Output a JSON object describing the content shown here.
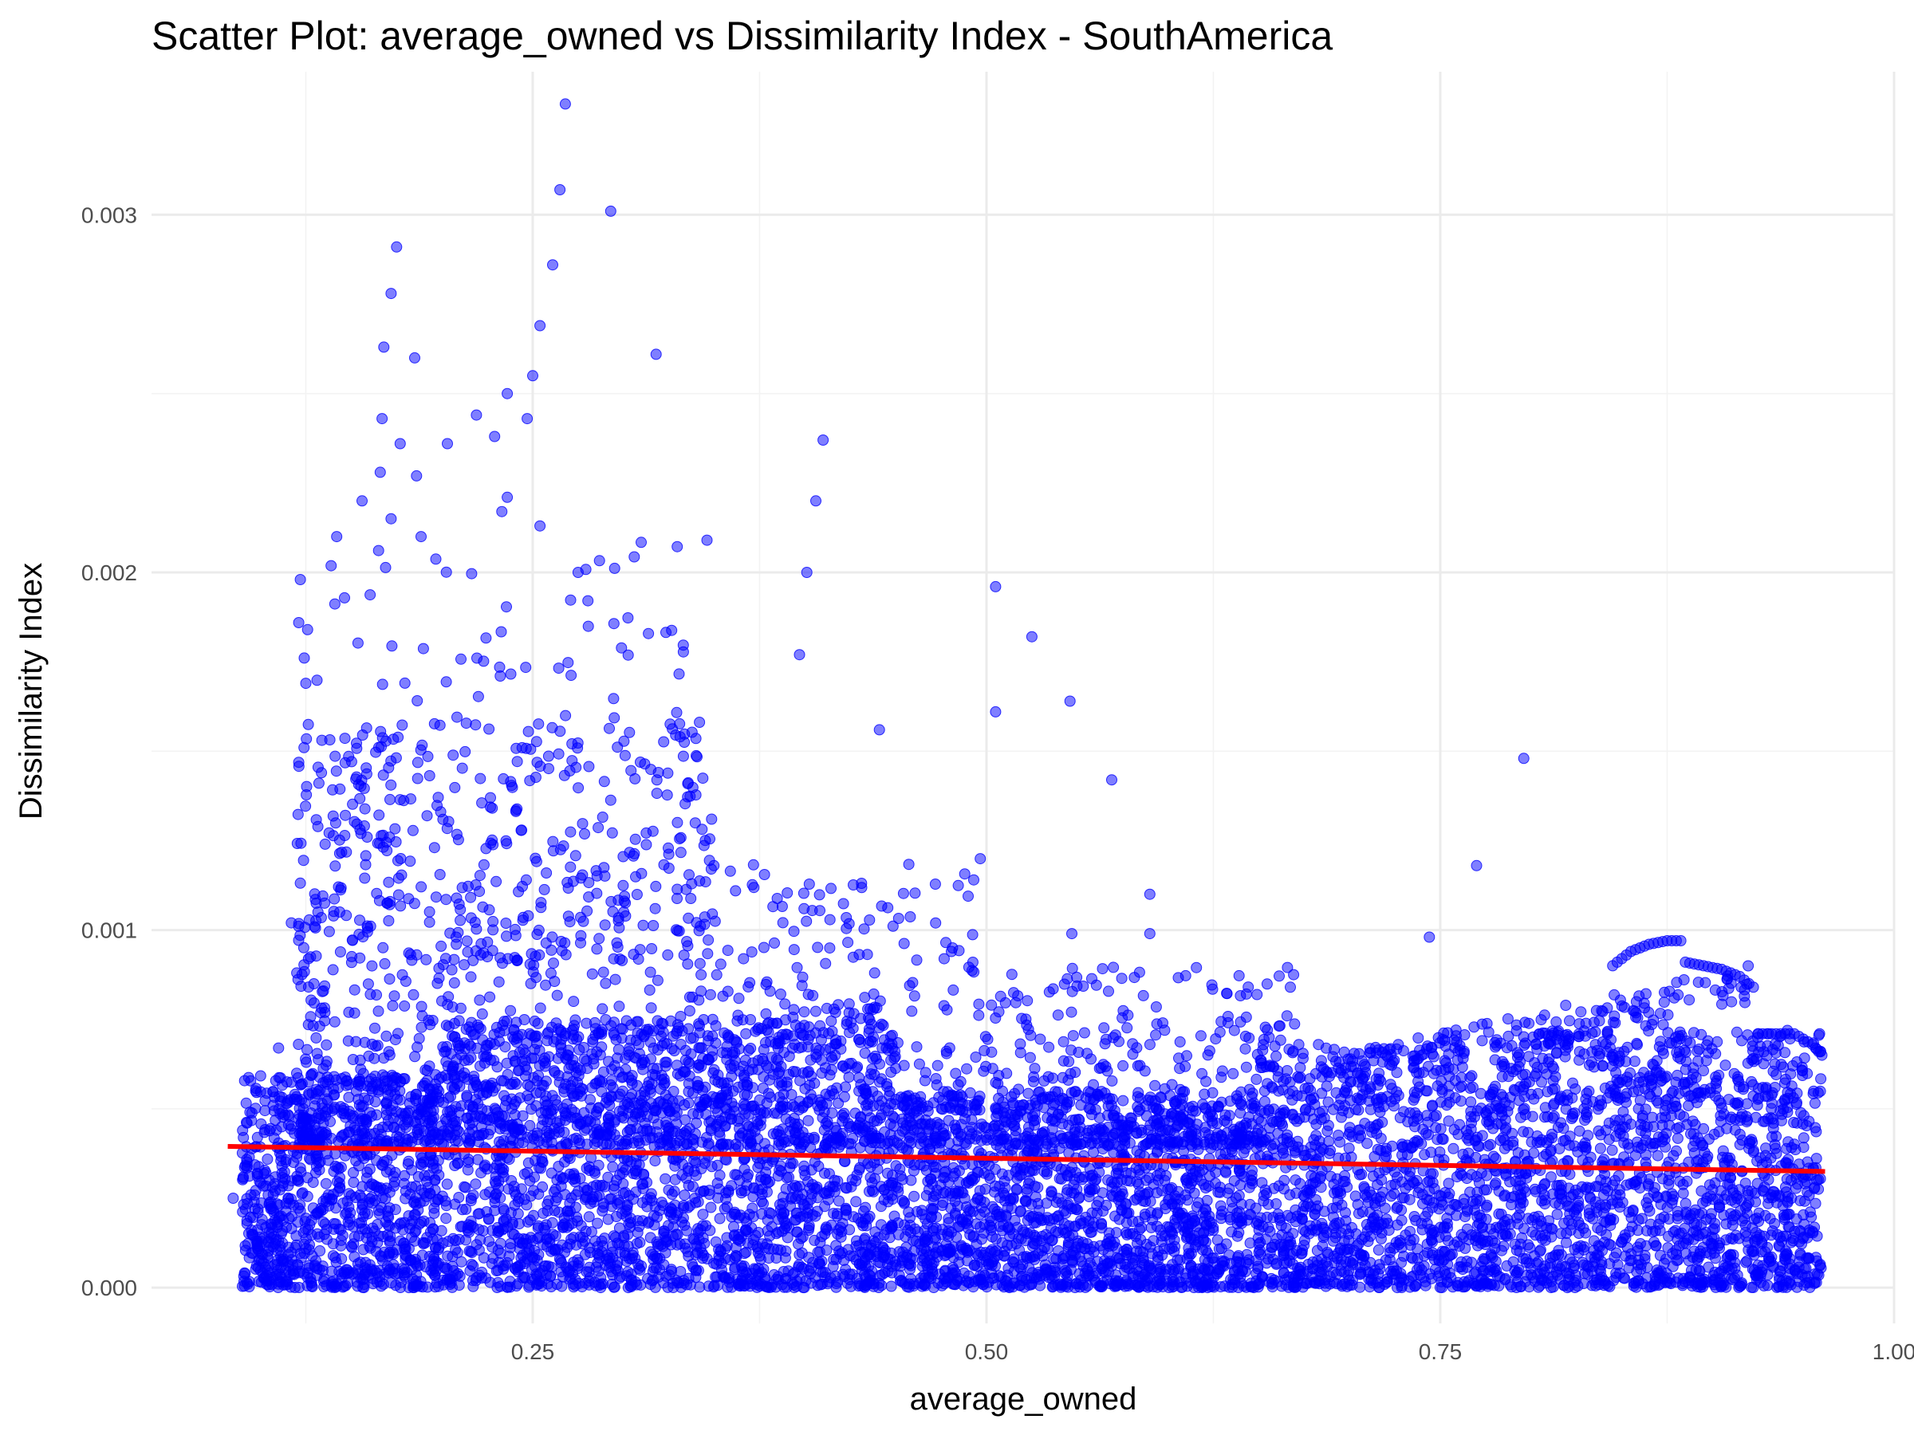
{
  "chart_data": {
    "type": "scatter",
    "title": "Scatter Plot: average_owned vs Dissimilarity Index - SouthAmerica",
    "xlabel": "average_owned",
    "ylabel": "Dissimilarity Index",
    "xlim": [
      0.04,
      1.0
    ],
    "ylim": [
      -0.0001,
      0.0034
    ],
    "x_ticks": [
      0.25,
      0.5,
      0.75,
      1.0
    ],
    "x_tick_labels": [
      "0.25",
      "0.50",
      "0.75",
      "1.00"
    ],
    "y_ticks": [
      0.0,
      0.001,
      0.002,
      0.003
    ],
    "y_tick_labels": [
      "0.000",
      "0.001",
      "0.002",
      "0.003"
    ],
    "grid": true,
    "point_color": "#0000ff",
    "point_opacity": 0.5,
    "trend_color": "#ff0000",
    "trend_line": {
      "x": [
        0.082,
        0.962
      ],
      "y": [
        0.000395,
        0.000325
      ]
    },
    "outliers": [
      {
        "x": 0.268,
        "y": 0.00331
      },
      {
        "x": 0.265,
        "y": 0.00307
      },
      {
        "x": 0.293,
        "y": 0.00301
      },
      {
        "x": 0.175,
        "y": 0.00291
      },
      {
        "x": 0.261,
        "y": 0.00286
      },
      {
        "x": 0.172,
        "y": 0.00278
      },
      {
        "x": 0.254,
        "y": 0.00269
      },
      {
        "x": 0.168,
        "y": 0.00263
      },
      {
        "x": 0.185,
        "y": 0.0026
      },
      {
        "x": 0.318,
        "y": 0.00261
      },
      {
        "x": 0.25,
        "y": 0.00255
      },
      {
        "x": 0.236,
        "y": 0.0025
      },
      {
        "x": 0.167,
        "y": 0.00243
      },
      {
        "x": 0.219,
        "y": 0.00244
      },
      {
        "x": 0.247,
        "y": 0.00243
      },
      {
        "x": 0.41,
        "y": 0.00237
      },
      {
        "x": 0.229,
        "y": 0.00238
      },
      {
        "x": 0.177,
        "y": 0.00236
      },
      {
        "x": 0.203,
        "y": 0.00236
      },
      {
        "x": 0.166,
        "y": 0.00228
      },
      {
        "x": 0.186,
        "y": 0.00227
      },
      {
        "x": 0.236,
        "y": 0.00221
      },
      {
        "x": 0.156,
        "y": 0.0022
      },
      {
        "x": 0.406,
        "y": 0.0022
      },
      {
        "x": 0.172,
        "y": 0.00215
      },
      {
        "x": 0.233,
        "y": 0.00217
      },
      {
        "x": 0.254,
        "y": 0.00213
      },
      {
        "x": 0.346,
        "y": 0.00209
      },
      {
        "x": 0.401,
        "y": 0.002
      },
      {
        "x": 0.275,
        "y": 0.002
      },
      {
        "x": 0.142,
        "y": 0.0021
      },
      {
        "x": 0.122,
        "y": 0.00198
      },
      {
        "x": 0.505,
        "y": 0.00196
      },
      {
        "x": 0.397,
        "y": 0.00177
      },
      {
        "x": 0.525,
        "y": 0.00182
      },
      {
        "x": 0.546,
        "y": 0.00164
      },
      {
        "x": 0.505,
        "y": 0.00161
      },
      {
        "x": 0.441,
        "y": 0.00156
      },
      {
        "x": 0.569,
        "y": 0.00142
      },
      {
        "x": 0.796,
        "y": 0.00148
      },
      {
        "x": 0.77,
        "y": 0.00118
      },
      {
        "x": 0.59,
        "y": 0.0011
      },
      {
        "x": 0.59,
        "y": 0.00099
      },
      {
        "x": 0.547,
        "y": 0.00099
      },
      {
        "x": 0.744,
        "y": 0.00098
      },
      {
        "x": 0.085,
        "y": 0.00025
      },
      {
        "x": 0.093,
        "y": 1e-05
      },
      {
        "x": 0.11,
        "y": 0.00067
      },
      {
        "x": 0.117,
        "y": 0.00102
      },
      {
        "x": 0.126,
        "y": 0.00184
      },
      {
        "x": 0.125,
        "y": 0.00169
      },
      {
        "x": 0.124,
        "y": 0.00151
      },
      {
        "x": 0.927,
        "y": 0.0001
      }
    ],
    "band_series": [
      {
        "x": [
          0.845,
          0.855,
          0.865,
          0.875,
          0.885
        ],
        "y": [
          0.0009,
          0.00094,
          0.00096,
          0.00097,
          0.00097
        ]
      },
      {
        "x": [
          0.885,
          0.895,
          0.905,
          0.915,
          0.925
        ],
        "y": [
          0.00091,
          0.0009,
          0.00089,
          0.00087,
          0.00083
        ]
      },
      {
        "x": [
          0.925,
          0.935,
          0.945,
          0.955,
          0.962
        ],
        "y": [
          0.00071,
          0.00071,
          0.00071,
          0.00068,
          0.00064
        ]
      }
    ]
  }
}
